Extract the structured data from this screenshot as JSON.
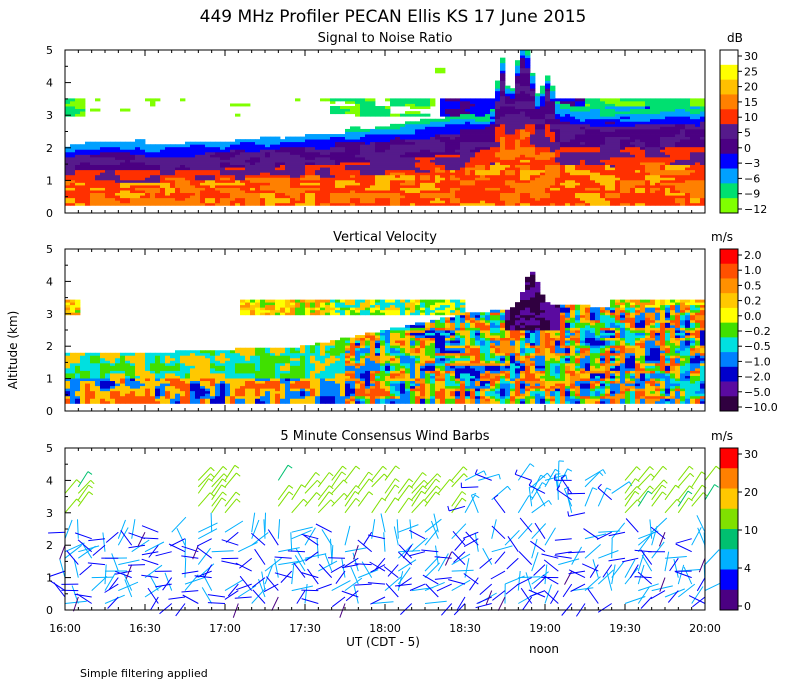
{
  "figure": {
    "title": "449 MHz Profiler PECAN Ellis KS 17 June 2015",
    "ylabel": "Altitude (km)",
    "xlabel": "UT (CDT - 5)",
    "noon_label": "noon",
    "note": "Simple filtering applied",
    "xticks": [
      "16:00",
      "16:30",
      "17:00",
      "17:30",
      "18:00",
      "18:30",
      "19:00",
      "19:30",
      "20:00"
    ],
    "yticks": [
      "0",
      "1",
      "2",
      "3",
      "4",
      "5"
    ]
  },
  "chart_data": [
    {
      "type": "heatmap",
      "title": "Signal to Noise Ratio",
      "units": "dB",
      "ylim": [
        0,
        5
      ],
      "xlim": [
        "16:00",
        "20:00"
      ],
      "colorbar_labels": [
        "30",
        "25",
        "20",
        "15",
        "10",
        "5",
        "0",
        "−3",
        "−6",
        "−9",
        "−12"
      ],
      "colors": [
        "#ffffff",
        "#ffff00",
        "#ffc000",
        "#ff8000",
        "#ff3000",
        "#551a8b",
        "#4b0082",
        "#0000ff",
        "#00a0ff",
        "#00e070",
        "#80ff00"
      ],
      "summary": {
        "signal_top_km": {
          "x": [
            "16:00",
            "16:30",
            "17:00",
            "17:30",
            "18:00",
            "18:30",
            "19:00",
            "19:30",
            "20:00"
          ],
          "y": [
            1.8,
            1.8,
            1.9,
            2.0,
            2.2,
            2.5,
            2.8,
            2.7,
            2.8
          ]
        },
        "peak_feature_km": {
          "x": "18:52",
          "y": 4.7
        },
        "upper_layer_km": [
          3.0,
          3.5
        ]
      }
    },
    {
      "type": "heatmap",
      "title": "Vertical Velocity",
      "units": "m/s",
      "ylim": [
        0,
        5
      ],
      "xlim": [
        "16:00",
        "20:00"
      ],
      "colorbar_labels": [
        "2.0",
        "1.0",
        "0.5",
        "0.2",
        "0.0",
        "−0.2",
        "−0.5",
        "−1.0",
        "−2.0",
        "−5.0",
        "−10.0"
      ],
      "colors": [
        "#ff0000",
        "#ff5000",
        "#ff9000",
        "#ffc800",
        "#ffff00",
        "#40e000",
        "#00e0e0",
        "#0080ff",
        "#0000cc",
        "#5a0aa0",
        "#300040"
      ],
      "summary": {
        "data_top_km": {
          "x": [
            "16:00",
            "16:30",
            "17:00",
            "17:30",
            "18:00",
            "18:30",
            "19:00",
            "19:30",
            "20:00"
          ],
          "y": [
            1.8,
            1.8,
            1.9,
            2.0,
            2.5,
            3.0,
            3.3,
            3.2,
            3.3
          ]
        },
        "downdraft_peak_km": {
          "x": "18:55",
          "y": 4.3
        }
      }
    },
    {
      "type": "scatter",
      "title": "5 Minute Consensus Wind Barbs",
      "units": "m/s",
      "ylim": [
        0,
        5
      ],
      "xlim": [
        "16:00",
        "20:00"
      ],
      "colorbar_labels": [
        "30",
        "20",
        "10",
        "4",
        "0"
      ],
      "colors": [
        "#ff0000",
        "#ff8000",
        "#ffc800",
        "#80e000",
        "#00c070",
        "#00b0ff",
        "#0000ff",
        "#4b0082"
      ],
      "summary": {
        "barb_interval_minutes": 5,
        "altitude_range_km": [
          0,
          5
        ]
      }
    }
  ]
}
